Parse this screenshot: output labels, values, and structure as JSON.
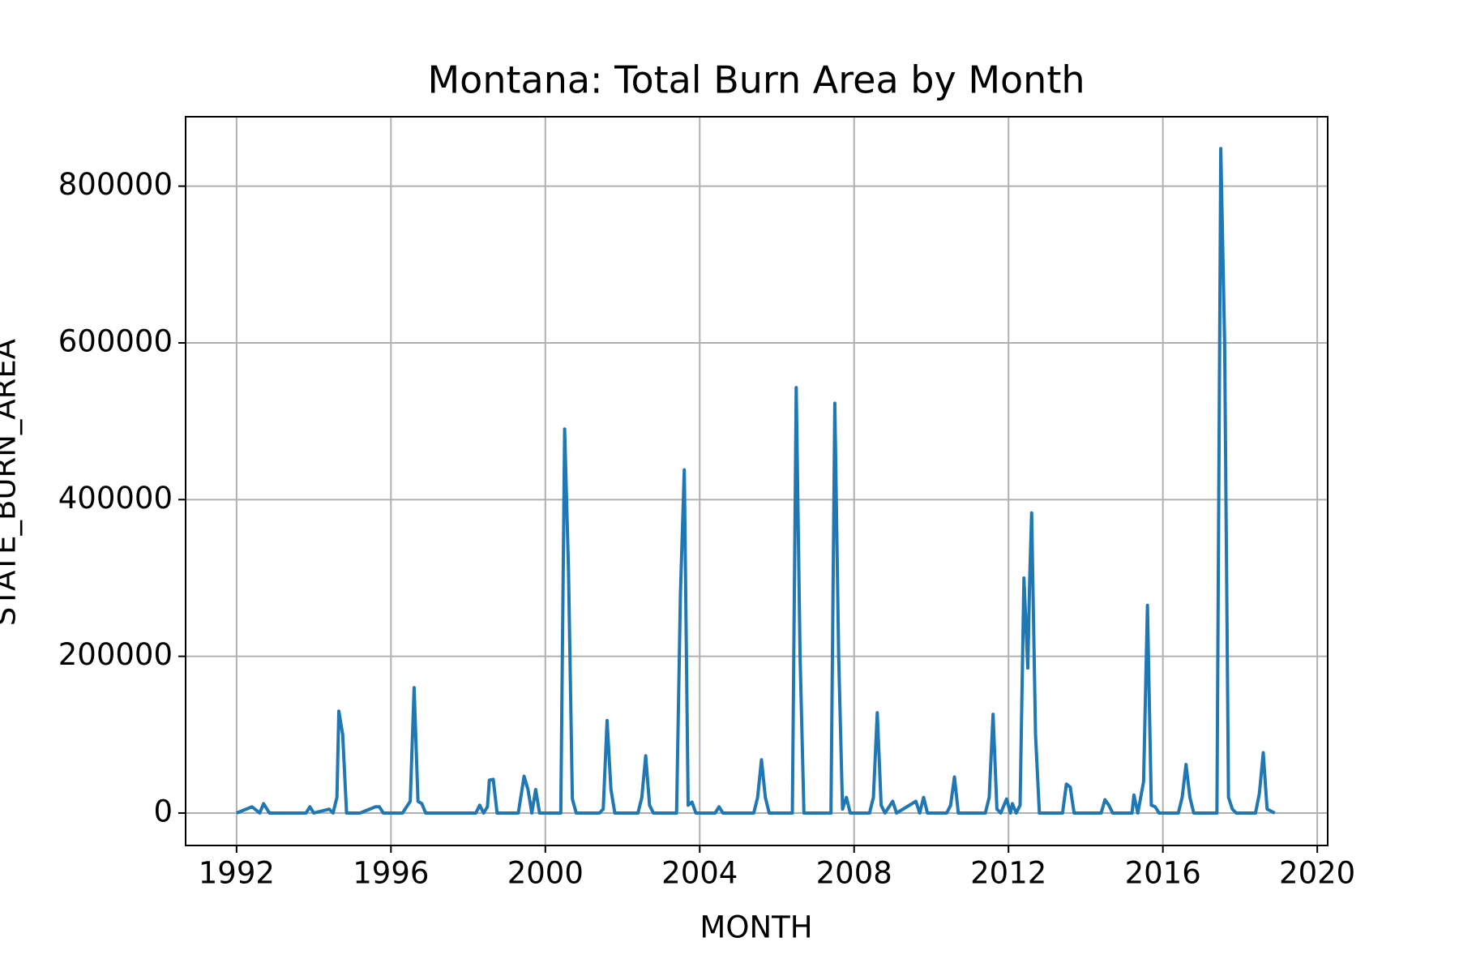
{
  "chart_data": {
    "type": "line",
    "title": "Montana: Total Burn Area by Month",
    "xlabel": "MONTH",
    "ylabel": "STATE_BURN_AREA",
    "xlim": [
      1990.68,
      2020.27
    ],
    "xticks": [
      1992,
      1996,
      2000,
      2004,
      2008,
      2012,
      2016,
      2020
    ],
    "ylim": [
      -41400,
      888600
    ],
    "yticks": [
      0,
      200000,
      400000,
      600000,
      800000
    ],
    "grid": true,
    "series": [
      {
        "name": "STATE_BURN_AREA",
        "color": "#1f77b4",
        "x": [
          1992.0,
          1992.4,
          1992.6,
          1992.7,
          1992.85,
          1993.8,
          1993.9,
          1994.0,
          1994.4,
          1994.5,
          1994.6,
          1994.65,
          1994.75,
          1994.85,
          1995.2,
          1995.6,
          1995.7,
          1995.8,
          1996.3,
          1996.5,
          1996.6,
          1996.7,
          1996.8,
          1996.9,
          1998.2,
          1998.3,
          1998.4,
          1998.5,
          1998.55,
          1998.65,
          1998.75,
          1999.3,
          1999.45,
          1999.55,
          1999.65,
          1999.75,
          1999.85,
          2000.4,
          2000.5,
          2000.6,
          2000.7,
          2000.8,
          2001.4,
          2001.5,
          2001.6,
          2001.7,
          2001.8,
          2002.4,
          2002.5,
          2002.6,
          2002.7,
          2002.8,
          2003.4,
          2003.5,
          2003.6,
          2003.7,
          2003.8,
          2003.9,
          2004.4,
          2004.5,
          2004.6,
          2005.4,
          2005.5,
          2005.6,
          2005.7,
          2005.8,
          2006.4,
          2006.5,
          2006.6,
          2006.7,
          2007.4,
          2007.5,
          2007.6,
          2007.7,
          2007.8,
          2007.9,
          2008.4,
          2008.5,
          2008.6,
          2008.7,
          2008.8,
          2009.0,
          2009.1,
          2009.6,
          2009.7,
          2009.8,
          2009.9,
          2010.4,
          2010.5,
          2010.6,
          2010.7,
          2011.4,
          2011.5,
          2011.6,
          2011.7,
          2011.8,
          2011.95,
          2012.05,
          2012.1,
          2012.2,
          2012.3,
          2012.4,
          2012.5,
          2012.55,
          2012.6,
          2012.7,
          2012.8,
          2013.4,
          2013.5,
          2013.6,
          2013.7,
          2014.4,
          2014.5,
          2014.6,
          2014.7,
          2015.2,
          2015.25,
          2015.35,
          2015.5,
          2015.6,
          2015.7,
          2015.8,
          2015.9,
          2016.4,
          2016.5,
          2016.6,
          2016.7,
          2016.8,
          2017.4,
          2017.5,
          2017.6,
          2017.7,
          2017.8,
          2017.9,
          2018.4,
          2018.5,
          2018.6,
          2018.7,
          2018.9
        ],
        "values": [
          0,
          8000,
          0,
          12000,
          0,
          0,
          8000,
          0,
          5000,
          0,
          20000,
          130000,
          100000,
          0,
          0,
          8000,
          8000,
          0,
          0,
          15000,
          160000,
          15000,
          12000,
          0,
          0,
          10000,
          0,
          8000,
          42000,
          43000,
          0,
          0,
          47000,
          30000,
          0,
          30000,
          0,
          0,
          490000,
          310000,
          18000,
          0,
          0,
          5000,
          118000,
          30000,
          0,
          0,
          20000,
          73000,
          10000,
          0,
          0,
          280000,
          438000,
          10000,
          14000,
          0,
          0,
          8000,
          0,
          0,
          20000,
          68000,
          20000,
          0,
          0,
          543000,
          200000,
          0,
          0,
          523000,
          200000,
          5000,
          20000,
          0,
          0,
          20000,
          128000,
          10000,
          0,
          15000,
          0,
          15000,
          0,
          20000,
          0,
          0,
          10000,
          46000,
          0,
          0,
          20000,
          126000,
          5000,
          0,
          18000,
          0,
          12000,
          0,
          10000,
          300000,
          185000,
          300000,
          383000,
          100000,
          0,
          0,
          37000,
          33000,
          0,
          0,
          17000,
          10000,
          0,
          0,
          23000,
          0,
          40000,
          265000,
          10000,
          8000,
          0,
          0,
          20000,
          62000,
          20000,
          0,
          0,
          848000,
          600000,
          20000,
          5000,
          0,
          0,
          25000,
          77000,
          5000,
          0
        ]
      }
    ]
  }
}
